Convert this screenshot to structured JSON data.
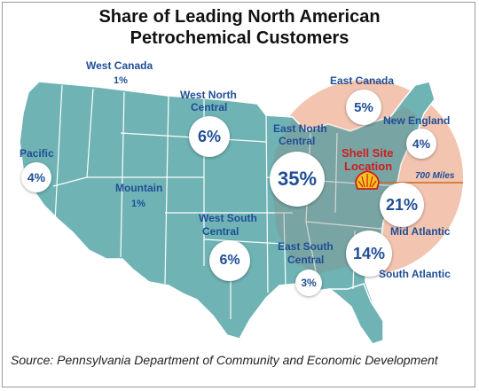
{
  "title_line1": "Share of Leading North American",
  "title_line2": "Petrochemical Customers",
  "regions": {
    "west_canada": {
      "name": "West Canada",
      "share": "1%"
    },
    "west_north_central": {
      "name_line1": "West North",
      "name_line2": "Central",
      "share": "6%"
    },
    "east_canada": {
      "name": "East Canada",
      "share": "5%"
    },
    "new_england": {
      "name": "New England",
      "share": "4%"
    },
    "pacific": {
      "name": "Pacific",
      "share": "4%"
    },
    "east_north_central": {
      "name_line1": "East North",
      "name_line2": "Central",
      "share": "35%"
    },
    "mountain": {
      "name": "Mountain",
      "share": "1%"
    },
    "west_south_central": {
      "name_line1": "West South",
      "name_line2": "Central",
      "share": "6%"
    },
    "east_south_central": {
      "name_line1": "East South",
      "name_line2": "Central",
      "share": "3%"
    },
    "mid_atlantic": {
      "name": "Mid Atlantic",
      "share": "21%"
    },
    "south_atlantic": {
      "name": "South Atlantic",
      "share": "14%"
    }
  },
  "shell_site": {
    "line1": "Shell Site",
    "line2": "Location"
  },
  "radius_label": "700 Miles",
  "source": "Source: Pennsylvania Department of Community and Economic Development",
  "colors": {
    "map_fill": "#6fb3b5",
    "map_border": "#ffffff",
    "radius_fill": "#f3c4b0",
    "label_blue": "#1f4e96",
    "shell_red": "#cc1f1f",
    "shell_yellow": "#f6c31a"
  }
}
